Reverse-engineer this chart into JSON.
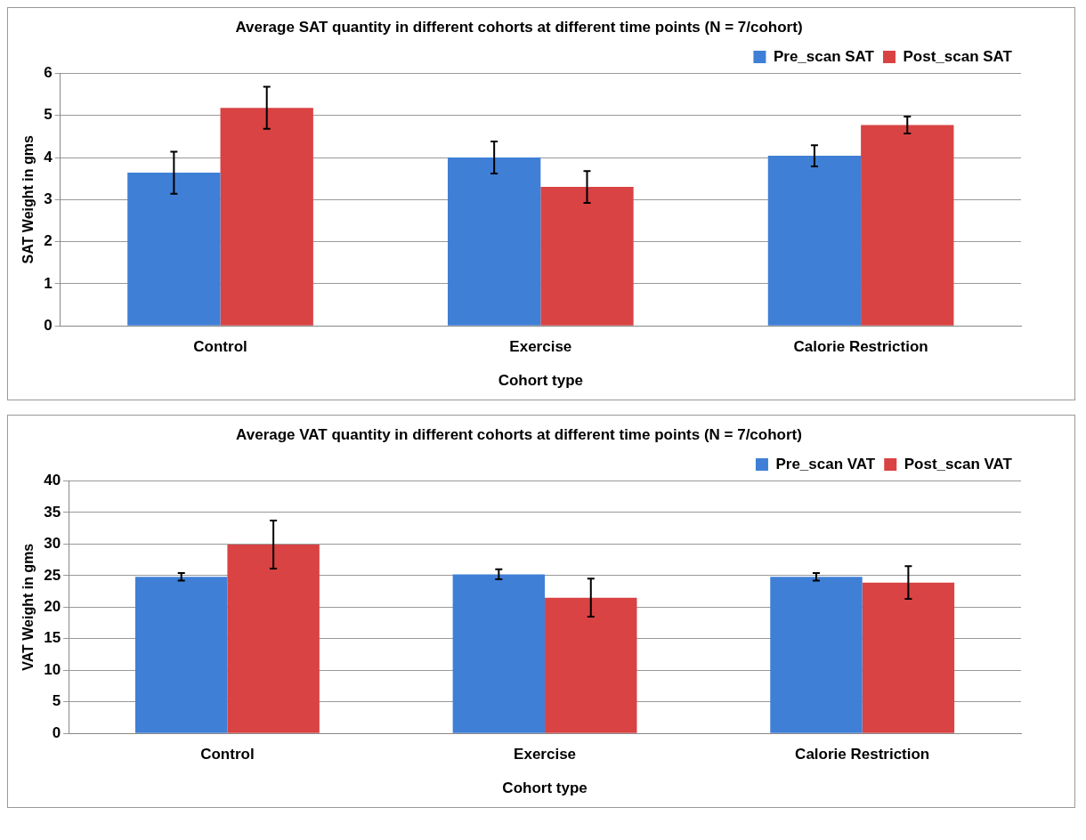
{
  "chart_data": [
    {
      "type": "bar",
      "title": "Average SAT quantity in different cohorts at different time points (N = 7/cohort)",
      "xlabel": "Cohort type",
      "ylabel": "SAT Weight in gms",
      "categories": [
        "Control",
        "Exercise",
        "Calorie Restriction"
      ],
      "ylim": [
        0,
        6
      ],
      "yticks": [
        0,
        1,
        2,
        3,
        4,
        5,
        6
      ],
      "grid": "y",
      "legend": "top right",
      "series": [
        {
          "name": "Pre_scan SAT",
          "color": "#3f7fd6",
          "values": [
            3.64,
            4.0,
            4.04
          ],
          "errors": [
            0.5,
            0.38,
            0.25
          ]
        },
        {
          "name": "Post_scan SAT",
          "color": "#d94343",
          "values": [
            5.18,
            3.3,
            4.77
          ],
          "errors": [
            0.5,
            0.38,
            0.2
          ]
        }
      ]
    },
    {
      "type": "bar",
      "title": "Average VAT quantity in different cohorts at different time points (N = 7/cohort)",
      "xlabel": "Cohort type",
      "ylabel": "VAT Weight in gms",
      "categories": [
        "Control",
        "Exercise",
        "Calorie Restriction"
      ],
      "ylim": [
        0,
        40
      ],
      "yticks": [
        0,
        5,
        10,
        15,
        20,
        25,
        30,
        35,
        40
      ],
      "grid": "y",
      "legend": "top right",
      "series": [
        {
          "name": "Pre_scan VAT",
          "color": "#3f7fd6",
          "values": [
            24.8,
            25.2,
            24.8
          ],
          "errors": [
            0.6,
            0.8,
            0.6
          ]
        },
        {
          "name": "Post_scan VAT",
          "color": "#d94343",
          "values": [
            29.9,
            21.5,
            23.9
          ],
          "errors": [
            3.8,
            3.0,
            2.6
          ]
        }
      ]
    }
  ]
}
